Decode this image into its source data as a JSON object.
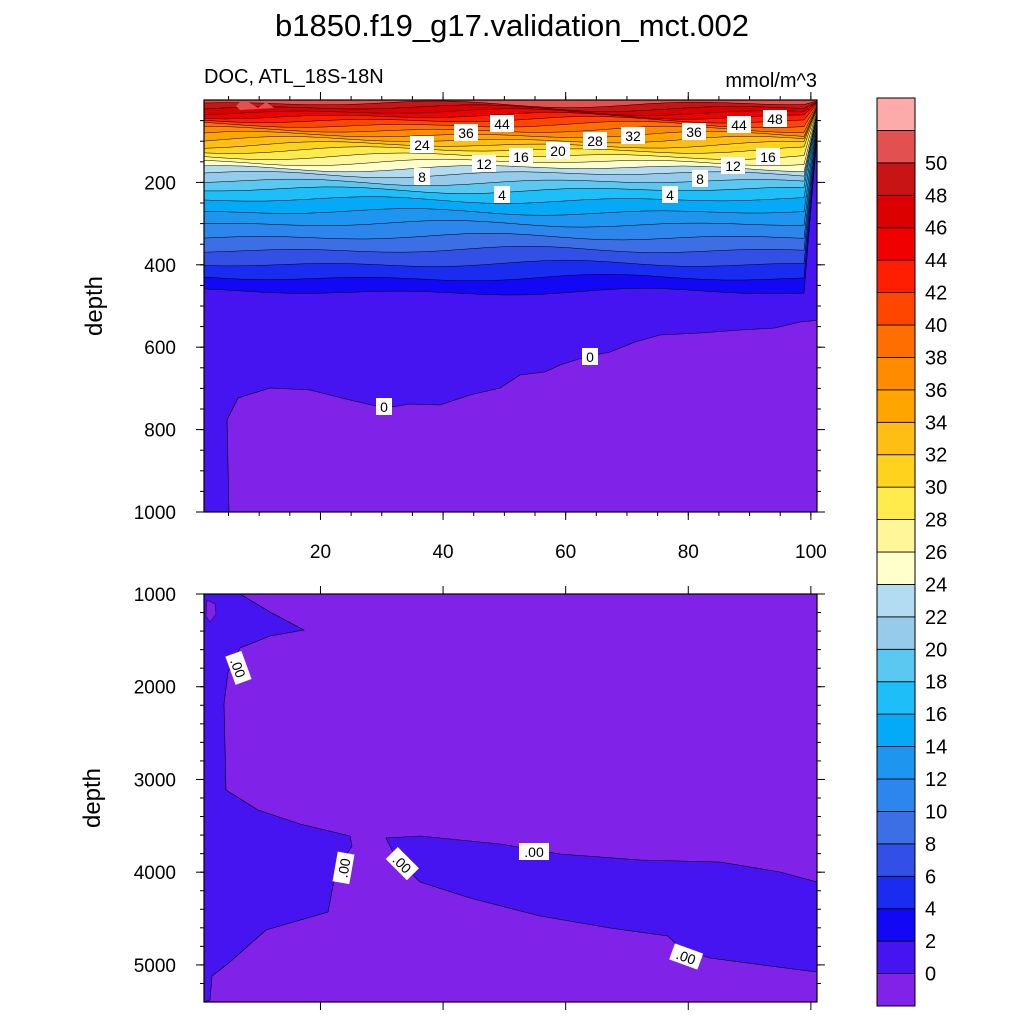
{
  "chart_data": {
    "type": "contour",
    "title": "b1850.f19_g17.validation_mct.002",
    "variable": "DOC, ATL_18S-18N",
    "units": "mmol/m^3",
    "panels": [
      {
        "name": "upper",
        "ylabel": "depth",
        "xlim": [
          1,
          101
        ],
        "ylim": [
          1000,
          0
        ],
        "xticks": [
          "20",
          "40",
          "60",
          "80",
          "100"
        ],
        "yticks": [
          "200",
          "400",
          "600",
          "800",
          "1000"
        ],
        "contour_labels": [
          "48",
          "44",
          "44",
          "36",
          "36",
          "32",
          "28",
          "24",
          "20",
          "16",
          "16",
          "12",
          "12",
          "8",
          "8",
          "4",
          "4",
          "0",
          "0"
        ],
        "description": "DOC decreases from ~50 at surface to ~0 below 300 m"
      },
      {
        "name": "lower",
        "ylabel": "depth",
        "xlim": [
          1,
          101
        ],
        "ylim": [
          5400,
          1000
        ],
        "yticks": [
          "1000",
          "2000",
          "3000",
          "4000",
          "5000"
        ],
        "contour_labels": [
          ".00",
          ".00",
          ".00",
          ".00",
          ".00"
        ]
      }
    ],
    "colorbar": {
      "levels": [
        "0",
        "2",
        "4",
        "6",
        "8",
        "10",
        "12",
        "14",
        "16",
        "18",
        "20",
        "22",
        "24",
        "26",
        "28",
        "30",
        "32",
        "34",
        "36",
        "38",
        "40",
        "42",
        "44",
        "46",
        "48",
        "50"
      ],
      "colors": [
        "#8122e8",
        "#4614f0",
        "#1308f5",
        "#1a2cf0",
        "#3250e6",
        "#3c6ee6",
        "#2d86eb",
        "#1e96f0",
        "#04aaf7",
        "#1ebef9",
        "#5ac8f0",
        "#96cbec",
        "#b4dcf1",
        "#ffffcc",
        "#fff699",
        "#ffeb4c",
        "#ffd21e",
        "#ffbe14",
        "#ffa500",
        "#ff8c00",
        "#ff6e00",
        "#ff4600",
        "#ff1e00",
        "#f00000",
        "#dc0000",
        "#c81414",
        "#e25050",
        "#fcaaaa"
      ]
    }
  }
}
